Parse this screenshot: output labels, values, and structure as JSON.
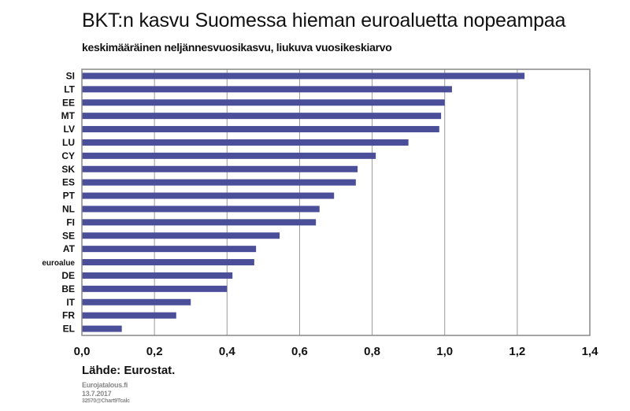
{
  "header": {
    "title": "BKT:n kasvu Suomessa hieman euroaluetta nopeampaa",
    "subtitle": "keskimääräinen neljännesvuosikasvu, liukuva vuosikeskiarvo"
  },
  "footer": {
    "source": "Lähde: Eurostat.",
    "site": "Eurojatalous.fi",
    "date": "13.7.2017",
    "code": "32570@Chart9Tcalc"
  },
  "colors": {
    "bar": "#4b4e99",
    "grid": "#999999",
    "axis": "#888888"
  },
  "chart_data": {
    "type": "bar",
    "orientation": "horizontal",
    "categories": [
      "SI",
      "LT",
      "EE",
      "MT",
      "LV",
      "LU",
      "CY",
      "SK",
      "ES",
      "PT",
      "NL",
      "FI",
      "SE",
      "AT",
      "euroalue",
      "DE",
      "BE",
      "IT",
      "FR",
      "EL"
    ],
    "values": [
      1.22,
      1.02,
      1.0,
      0.99,
      0.985,
      0.9,
      0.81,
      0.76,
      0.755,
      0.695,
      0.655,
      0.645,
      0.545,
      0.48,
      0.475,
      0.415,
      0.4,
      0.3,
      0.26,
      0.11
    ],
    "xlim": [
      0,
      1.4
    ],
    "xticks": [
      "0,0",
      "0,2",
      "0,4",
      "0,6",
      "0,8",
      "1,0",
      "1,2",
      "1,4"
    ],
    "grid": "vertical"
  }
}
